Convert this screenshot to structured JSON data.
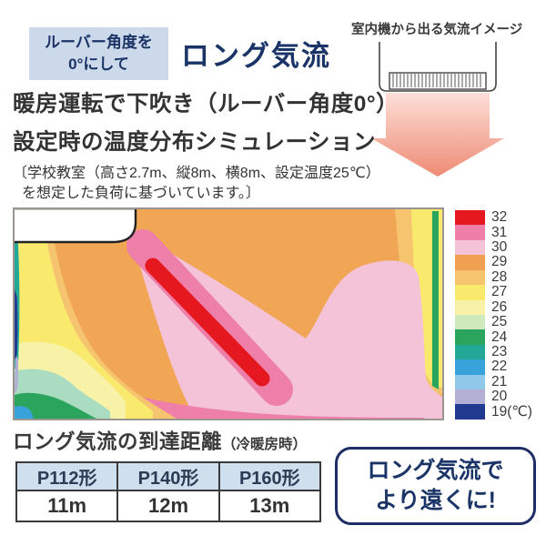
{
  "badge": {
    "line1": "ルーバー角度を",
    "line2": "0°にして",
    "bg": "#ccd9ea",
    "text_color": "#1b3467"
  },
  "title": {
    "text": "ロング気流",
    "color": "#1b3467"
  },
  "airflow_illustration": {
    "caption": "室内機から出る気流イメージ",
    "arrow_color_top": "#fcdfd9",
    "arrow_color_tip": "#ee8b74"
  },
  "description": {
    "line1": "暖房運転で下吹き（ルーバー角度0°）",
    "line2": "設定時の温度分布シミュレーション"
  },
  "note": {
    "line1": "〔学校教室（高さ2.7m、縦8m、横8m、設定温度25℃）",
    "line2": "を想定した負荷に基づいています。〕"
  },
  "scale": {
    "unit_suffix": "(℃)",
    "items": [
      {
        "temp": "32",
        "color": "#e5171f"
      },
      {
        "temp": "31",
        "color": "#ee7fa8"
      },
      {
        "temp": "30",
        "color": "#f4c3d8"
      },
      {
        "temp": "29",
        "color": "#f0a050"
      },
      {
        "temp": "28",
        "color": "#f6c46e"
      },
      {
        "temp": "27",
        "color": "#f9ea6e"
      },
      {
        "temp": "26",
        "color": "#f7f2a8"
      },
      {
        "temp": "25",
        "color": "#cfe8bc"
      },
      {
        "temp": "24",
        "color": "#2ba55e"
      },
      {
        "temp": "23",
        "color": "#23a897"
      },
      {
        "temp": "22",
        "color": "#38a3da"
      },
      {
        "temp": "21",
        "color": "#90c8ea"
      },
      {
        "temp": "20",
        "color": "#b2aed4"
      },
      {
        "temp": "19",
        "color": "#1f3a8e"
      }
    ]
  },
  "chart_data": [
    {
      "type": "heatmap",
      "title": "暖房運転で下吹き（ルーバー角度0°）設定時の温度分布シミュレーション",
      "condition": "学校教室（高さ2.7m、縦8m、横8m、設定温度25℃）を想定した負荷",
      "legend_position": "right",
      "legend_unit": "℃",
      "temperature_legend": [
        32,
        31,
        30,
        29,
        28,
        27,
        26,
        25,
        24,
        23,
        22,
        21,
        20,
        19
      ],
      "legend_colors": [
        "#e5171f",
        "#ee7fa8",
        "#f4c3d8",
        "#f0a050",
        "#f6c46e",
        "#f9ea6e",
        "#f7f2a8",
        "#cfe8bc",
        "#2ba55e",
        "#23a897",
        "#38a3da",
        "#90c8ea",
        "#b2aed4",
        "#1f3a8e"
      ],
      "description": "左上の室内機から32℃の温風ジェットが斜め下方向に吹き出し、床面に沿って右へ30〜31℃の暖気が広がる。背景は約29℃、左壁沿いは27〜19℃、右壁際は28〜24℃の帯。"
    },
    {
      "type": "table",
      "title": "ロング気流の到達距離（冷暖房時）",
      "categories": [
        "P112形",
        "P140形",
        "P160形"
      ],
      "values": [
        "11m",
        "12m",
        "13m"
      ]
    }
  ],
  "reach": {
    "heading": "ロング気流の到達距離",
    "heading_note": "（冷暖房時）",
    "table": {
      "headers": [
        "P112形",
        "P140形",
        "P160形"
      ],
      "values": [
        "11m",
        "12m",
        "13m"
      ]
    }
  },
  "cta": {
    "line1": "ロング気流で",
    "line2": "より遠くに!"
  }
}
